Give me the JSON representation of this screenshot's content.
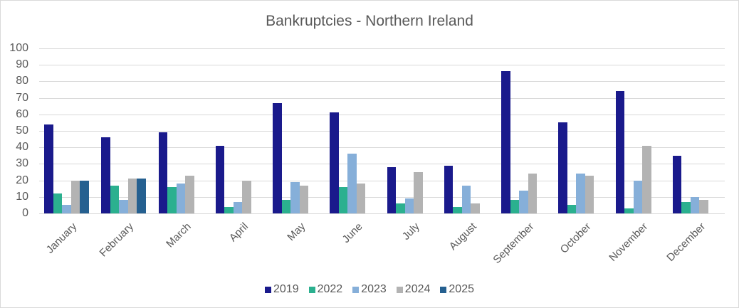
{
  "chart_data": {
    "type": "bar",
    "title": "Bankruptcies - Northern Ireland",
    "xlabel": "",
    "ylabel": "",
    "ylim": [
      0,
      100
    ],
    "yticks": [
      0,
      10,
      20,
      30,
      40,
      50,
      60,
      70,
      80,
      90,
      100
    ],
    "grid": true,
    "legend_position": "bottom",
    "categories": [
      "January",
      "February",
      "March",
      "April",
      "May",
      "June",
      "July",
      "August",
      "September",
      "October",
      "November",
      "December"
    ],
    "series": [
      {
        "name": "2019",
        "color": "#1a1a8c",
        "values": [
          54,
          46,
          49,
          41,
          67,
          61,
          28,
          29,
          86,
          55,
          74,
          35
        ]
      },
      {
        "name": "2022",
        "color": "#2bb08f",
        "values": [
          12,
          17,
          16,
          4,
          8,
          16,
          6,
          4,
          8,
          5,
          3,
          7
        ]
      },
      {
        "name": "2023",
        "color": "#86afd9",
        "values": [
          5,
          8,
          18,
          7,
          19,
          36,
          9,
          17,
          14,
          24,
          20,
          10
        ]
      },
      {
        "name": "2024",
        "color": "#b3b3b3",
        "values": [
          20,
          21,
          23,
          20,
          17,
          18,
          25,
          6,
          24,
          23,
          41,
          8
        ]
      },
      {
        "name": "2025",
        "color": "#256090",
        "values": [
          20,
          21,
          null,
          null,
          null,
          null,
          null,
          null,
          null,
          null,
          null,
          null
        ]
      }
    ]
  }
}
